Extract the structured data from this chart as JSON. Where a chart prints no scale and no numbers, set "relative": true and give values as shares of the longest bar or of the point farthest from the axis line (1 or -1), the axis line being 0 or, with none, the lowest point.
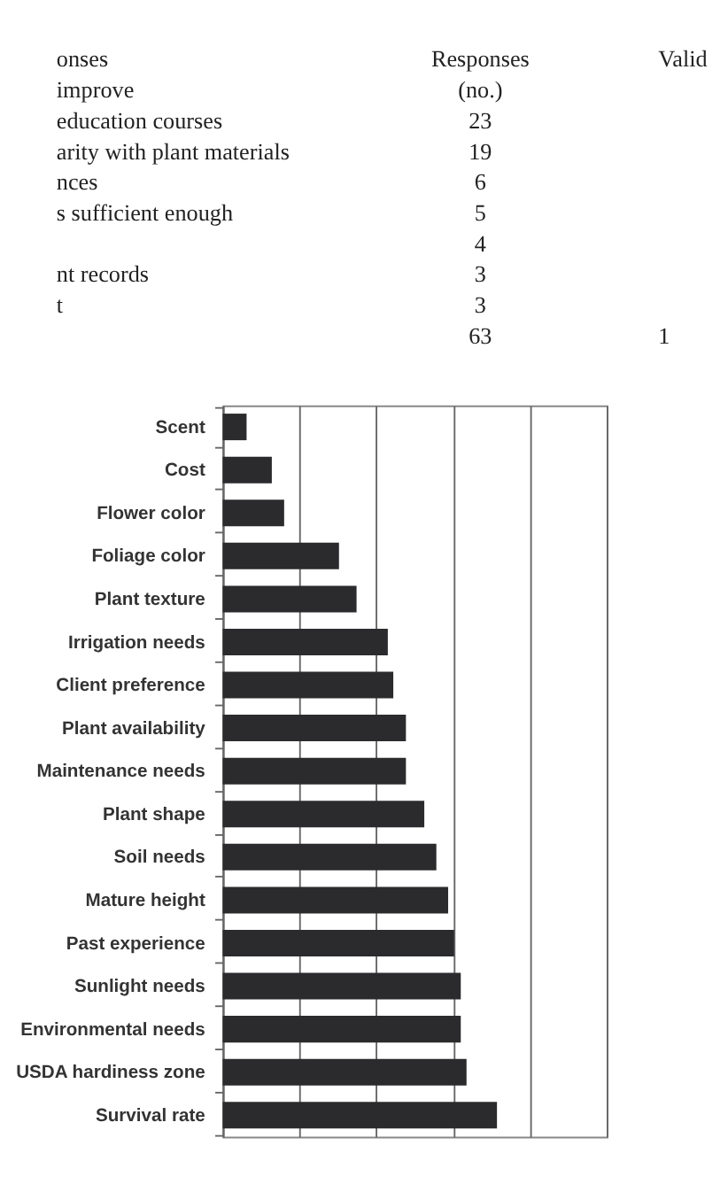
{
  "chart_data": {
    "type": "bar",
    "orientation": "horizontal",
    "relative": true,
    "grid": "x",
    "color": "#2b2b2e",
    "categories": [
      "Scent",
      "Cost",
      "Flower color",
      "Foliage color",
      "Plant texture",
      "Irrigation needs",
      "Client preference",
      "Plant availability",
      "Maintenance needs",
      "Plant shape",
      "Soil needs",
      "Mature height",
      "Past experience",
      "Sunlight needs",
      "Environmental needs",
      "USDA hardiness zone",
      "Survival rate"
    ],
    "values": [
      0.087,
      0.179,
      0.224,
      0.424,
      0.488,
      0.602,
      0.622,
      0.668,
      0.668,
      0.735,
      0.779,
      0.822,
      0.844,
      0.868,
      0.868,
      0.889,
      1
    ],
    "annotations": [
      "onses\tResponses\tValid",
      "improve\t(no.)\t",
      "education courses\t23\t",
      "arity with plant materials\t19\t",
      "nces\t6\t",
      "s sufficient enough\t5\t",
      "\t4\t",
      "nt records\t3\t",
      "t\t3\t",
      "\t63\t1"
    ]
  }
}
